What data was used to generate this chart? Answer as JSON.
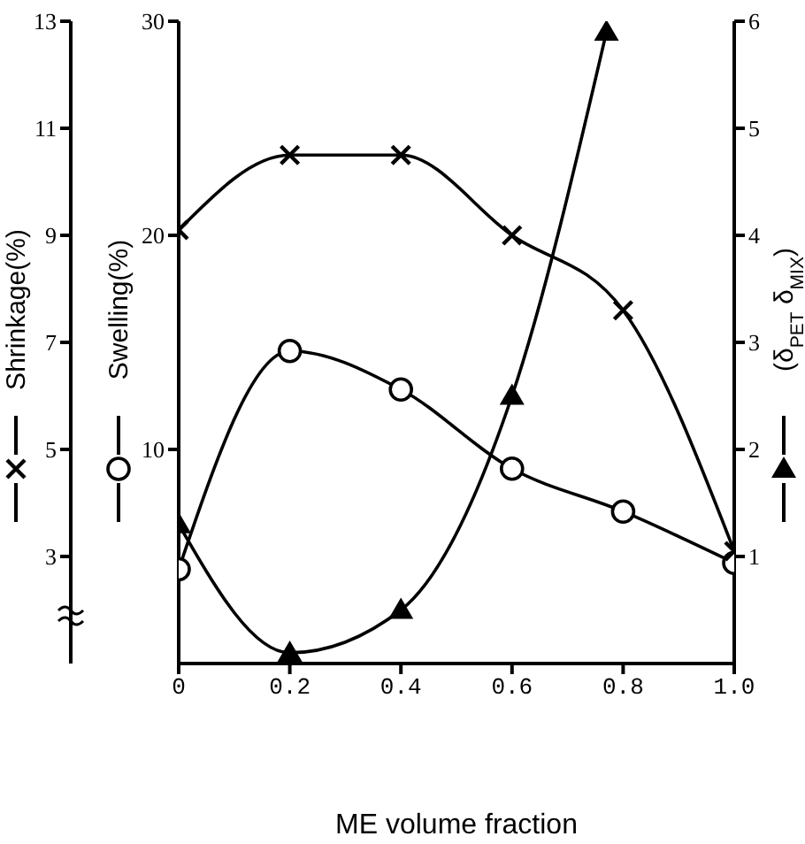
{
  "chart_data": {
    "type": "line",
    "xlabel": "ME volume fraction",
    "ylabel": "Shrinkage(%)",
    "y2label": "Swelling(%)",
    "y3label": "(δ$_{PET}$ δ$_{MIX}$)",
    "xlim": [
      0,
      1
    ],
    "xticks": [
      0,
      0.2,
      0.4,
      0.6,
      0.8,
      {
        "value": 1,
        "label": "1.0"
      }
    ],
    "ylim": [
      1,
      13
    ],
    "yticks": [
      3,
      5,
      7,
      9,
      11,
      13
    ],
    "y2lim": [
      0,
      30
    ],
    "y2ticks": [
      10,
      20,
      30
    ],
    "y3lim": [
      0,
      6
    ],
    "y3ticks": [
      1,
      2,
      3,
      4,
      5,
      6
    ],
    "series": [
      {
        "color": "#000000",
        "marker": "cross",
        "axis": "y",
        "x": [
          0,
          0.2,
          0.4,
          0.6,
          0.8,
          1.0
        ],
        "values": [
          9.1,
          10.5,
          10.5,
          9.0,
          7.6,
          3.1
        ]
      },
      {
        "color": "#000000",
        "marker": "circle",
        "axis": "y2",
        "x": [
          0,
          0.2,
          0.4,
          0.6,
          0.8,
          1.0
        ],
        "values": [
          4.4,
          14.6,
          12.8,
          9.1,
          7.1,
          4.7
        ]
      },
      {
        "color": "#000000",
        "marker": "triangle",
        "axis": "y3",
        "x": [
          0,
          0.2,
          0.4,
          0.6,
          0.77
        ],
        "values": [
          1.3,
          0.1,
          0.5,
          2.5,
          5.9
        ]
      }
    ]
  }
}
